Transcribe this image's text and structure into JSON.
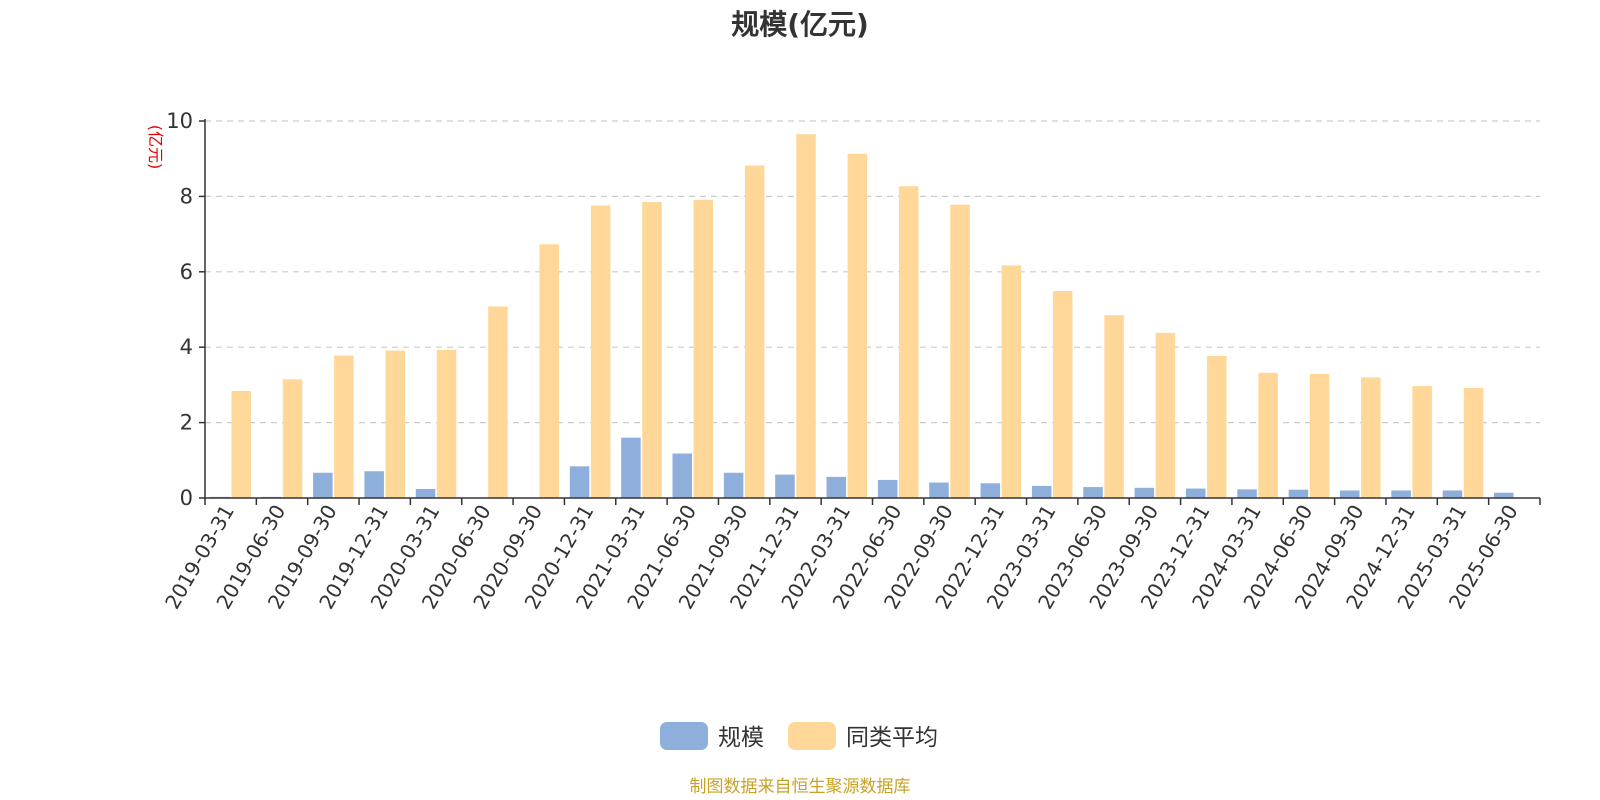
{
  "chart_data": {
    "type": "bar",
    "title": "规模(亿元)",
    "ylabel": "(亿元)",
    "ylim": [
      0,
      10
    ],
    "yticks": [
      "0",
      "2",
      "4",
      "6",
      "8",
      "10"
    ],
    "grid": true,
    "legend_position": "bottom",
    "categories": [
      "2019-03-31",
      "2019-06-30",
      "2019-09-30",
      "2019-12-31",
      "2020-03-31",
      "2020-06-30",
      "2020-09-30",
      "2020-12-31",
      "2021-03-31",
      "2021-06-30",
      "2021-09-30",
      "2021-12-31",
      "2022-03-31",
      "2022-06-30",
      "2022-09-30",
      "2022-12-31",
      "2023-03-31",
      "2023-06-30",
      "2023-09-30",
      "2023-12-31",
      "2024-03-31",
      "2024-06-30",
      "2024-09-30",
      "2024-12-31",
      "2025-03-31",
      "2025-06-30"
    ],
    "series": [
      {
        "name": "规模",
        "color": "#8eaedc",
        "values": [
          0.03,
          0.03,
          0.67,
          0.71,
          0.24,
          0.0,
          0.0,
          0.84,
          1.6,
          1.18,
          0.67,
          0.62,
          0.56,
          0.48,
          0.41,
          0.39,
          0.32,
          0.29,
          0.27,
          0.25,
          0.23,
          0.22,
          0.2,
          0.2,
          0.2,
          0.14
        ]
      },
      {
        "name": "同类平均",
        "color": "#ffd899",
        "values": [
          2.84,
          3.15,
          3.78,
          3.91,
          3.93,
          5.08,
          6.73,
          7.76,
          7.85,
          7.91,
          8.82,
          9.65,
          9.13,
          8.27,
          7.78,
          6.17,
          5.49,
          4.85,
          4.38,
          3.77,
          3.32,
          3.29,
          3.2,
          2.97,
          2.92,
          null
        ]
      }
    ]
  },
  "source_note": "制图数据来自恒生聚源数据库"
}
